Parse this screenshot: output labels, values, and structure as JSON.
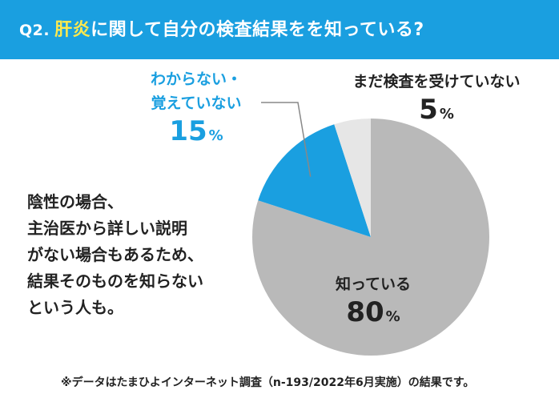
{
  "header": {
    "question_no": "Q2.",
    "keyword": "肝炎",
    "question_rest": "に関して自分の検査結果をを知っている?"
  },
  "note": "陰性の場合、\n主治医から詳しい説明\nがない場合もあるため、\n結果そのものを知らない\nという人も。",
  "footnote": "※データはたまひよインターネット調査（n-193/2022年6月実施）の結果です。",
  "chart_data": {
    "type": "pie",
    "unit": "%",
    "slices": [
      {
        "label": "知っている",
        "value": 80,
        "color": "#b9b9b9"
      },
      {
        "label": "わからない・\n覚えていない",
        "value": 15,
        "color": "#1a9fe0"
      },
      {
        "label": "まだ検査を受けていない",
        "value": 5,
        "color": "#e6e6e6"
      }
    ]
  },
  "colors": {
    "header_bg": "#1a9fe0",
    "keyword": "#ffe94d",
    "leader_line": "#888888"
  }
}
